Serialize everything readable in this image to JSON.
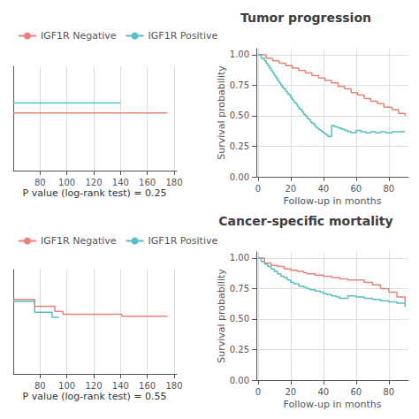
{
  "chart_data": [
    {
      "type": "line",
      "legend": "upper left",
      "annotations": [
        "P value (log-rank test) = 0.25"
      ],
      "xlim": [
        60,
        182
      ],
      "xticks": [
        80,
        100,
        120,
        140,
        160,
        180
      ],
      "ylim": [
        0.0,
        1.05
      ],
      "yticks": [],
      "tick_labels": "x",
      "grid": true,
      "series": [
        {
          "name": "IGF1R Negative",
          "color": "#E8837A",
          "x": [
            60,
            175
          ],
          "values": [
            0.58,
            0.58
          ]
        },
        {
          "name": "IGF1R Positive",
          "color": "#56BFBF",
          "x": [
            60,
            140
          ],
          "values": [
            0.68,
            0.68
          ]
        }
      ]
    },
    {
      "type": "step",
      "title": "Tumor progression",
      "xlabel": "Follow-up in months",
      "ylabel": "Survival probability",
      "xlim": [
        -1,
        92
      ],
      "xticks": [
        0,
        20,
        40,
        60,
        80
      ],
      "ylim": [
        0.0,
        1.05
      ],
      "yticks": [
        {
          "value": 0.0,
          "label": "0.00"
        },
        {
          "value": 0.25,
          "label": "0.25"
        },
        {
          "value": 0.5,
          "label": "0.50"
        },
        {
          "value": 0.75,
          "label": "0.75"
        },
        {
          "value": 1.0,
          "label": "1.00"
        }
      ],
      "grid": true,
      "series": [
        {
          "name": "IGF1R Negative",
          "color": "#E8837A",
          "x": [
            0,
            3,
            5,
            7,
            9,
            11,
            13,
            15,
            17,
            19,
            21,
            23,
            25,
            27,
            29,
            31,
            33,
            35,
            37,
            39,
            41,
            43,
            45,
            47,
            49,
            51,
            53,
            55,
            57,
            59,
            61,
            63,
            65,
            67,
            69,
            71,
            73,
            75,
            77,
            79,
            82,
            86,
            90
          ],
          "values": [
            1.0,
            1.0,
            0.97,
            0.97,
            0.95,
            0.95,
            0.93,
            0.93,
            0.91,
            0.91,
            0.89,
            0.89,
            0.87,
            0.87,
            0.85,
            0.85,
            0.83,
            0.83,
            0.81,
            0.81,
            0.79,
            0.79,
            0.77,
            0.77,
            0.74,
            0.74,
            0.72,
            0.72,
            0.69,
            0.69,
            0.67,
            0.67,
            0.64,
            0.64,
            0.62,
            0.62,
            0.6,
            0.6,
            0.57,
            0.57,
            0.55,
            0.52,
            0.5
          ]
        },
        {
          "name": "IGF1R Positive",
          "color": "#56BFBF",
          "x": [
            0,
            2,
            4,
            5,
            6,
            7,
            8,
            9,
            10,
            11,
            12,
            13,
            14,
            15,
            16,
            17,
            18,
            19,
            20,
            21,
            22,
            23,
            24,
            25,
            26,
            27,
            28,
            29,
            30,
            31,
            32,
            33,
            34,
            35,
            36,
            37,
            38,
            39,
            40,
            41,
            42,
            43,
            45,
            47,
            49,
            51,
            53,
            55,
            57,
            60,
            63,
            66,
            69,
            72,
            75,
            78,
            82,
            86,
            90
          ],
          "values": [
            1.0,
            0.97,
            0.95,
            0.93,
            0.91,
            0.89,
            0.87,
            0.85,
            0.83,
            0.81,
            0.79,
            0.77,
            0.75,
            0.73,
            0.72,
            0.7,
            0.68,
            0.67,
            0.65,
            0.63,
            0.61,
            0.6,
            0.58,
            0.56,
            0.55,
            0.53,
            0.51,
            0.5,
            0.48,
            0.47,
            0.45,
            0.44,
            0.43,
            0.41,
            0.4,
            0.39,
            0.38,
            0.37,
            0.36,
            0.35,
            0.34,
            0.33,
            0.42,
            0.41,
            0.4,
            0.39,
            0.38,
            0.37,
            0.36,
            0.38,
            0.37,
            0.36,
            0.37,
            0.36,
            0.37,
            0.36,
            0.37,
            0.37,
            0.37
          ]
        }
      ]
    },
    {
      "type": "step",
      "legend": "upper left",
      "annotations": [
        "P value (log-rank test) = 0.55"
      ],
      "xlim": [
        60,
        182
      ],
      "xticks": [
        80,
        100,
        120,
        140,
        160,
        180
      ],
      "ylim": [
        0.0,
        1.05
      ],
      "yticks": [],
      "tick_labels": "x",
      "grid": true,
      "series": [
        {
          "name": "IGF1R Negative",
          "color": "#E8837A",
          "x": [
            60,
            75,
            76,
            90,
            91,
            96,
            97,
            140,
            141,
            175
          ],
          "values": [
            0.75,
            0.75,
            0.68,
            0.68,
            0.63,
            0.63,
            0.6,
            0.6,
            0.58,
            0.58
          ]
        },
        {
          "name": "IGF1R Positive",
          "color": "#56BFBF",
          "x": [
            60,
            75,
            76,
            88,
            89,
            94
          ],
          "values": [
            0.73,
            0.73,
            0.62,
            0.62,
            0.57,
            0.57
          ]
        }
      ]
    },
    {
      "type": "step",
      "title": "Cancer-specific mortality",
      "xlabel": "Follow-up in months",
      "ylabel": "Survival probability",
      "xlim": [
        -1,
        92
      ],
      "xticks": [
        0,
        20,
        40,
        60,
        80
      ],
      "ylim": [
        0.0,
        1.05
      ],
      "yticks": [
        {
          "value": 0.0,
          "label": "0.00"
        },
        {
          "value": 0.25,
          "label": "0.25"
        },
        {
          "value": 0.5,
          "label": "0.50"
        },
        {
          "value": 0.75,
          "label": "0.75"
        },
        {
          "value": 1.0,
          "label": "1.00"
        }
      ],
      "grid": true,
      "series": [
        {
          "name": "IGF1R Negative",
          "color": "#E8837A",
          "x": [
            0,
            4,
            6,
            8,
            10,
            12,
            14,
            16,
            18,
            20,
            22,
            24,
            26,
            28,
            30,
            32,
            35,
            38,
            40,
            42,
            45,
            48,
            50,
            52,
            55,
            58,
            60,
            65,
            70,
            75,
            80,
            85,
            90
          ],
          "values": [
            1.0,
            0.96,
            0.96,
            0.94,
            0.94,
            0.93,
            0.93,
            0.91,
            0.91,
            0.9,
            0.9,
            0.89,
            0.89,
            0.88,
            0.87,
            0.87,
            0.86,
            0.86,
            0.85,
            0.85,
            0.84,
            0.84,
            0.83,
            0.83,
            0.82,
            0.82,
            0.82,
            0.8,
            0.78,
            0.75,
            0.72,
            0.68,
            0.63
          ]
        },
        {
          "name": "IGF1R Positive",
          "color": "#56BFBF",
          "x": [
            0,
            2,
            4,
            6,
            8,
            10,
            12,
            14,
            16,
            18,
            20,
            22,
            25,
            28,
            30,
            32,
            35,
            38,
            40,
            42,
            45,
            48,
            50,
            55,
            60,
            65,
            70,
            75,
            80,
            85,
            90
          ],
          "values": [
            1.0,
            0.97,
            0.95,
            0.93,
            0.91,
            0.89,
            0.87,
            0.85,
            0.84,
            0.82,
            0.8,
            0.79,
            0.77,
            0.76,
            0.75,
            0.74,
            0.73,
            0.72,
            0.71,
            0.7,
            0.69,
            0.68,
            0.67,
            0.69,
            0.68,
            0.67,
            0.66,
            0.65,
            0.64,
            0.63,
            0.6
          ]
        }
      ]
    }
  ]
}
